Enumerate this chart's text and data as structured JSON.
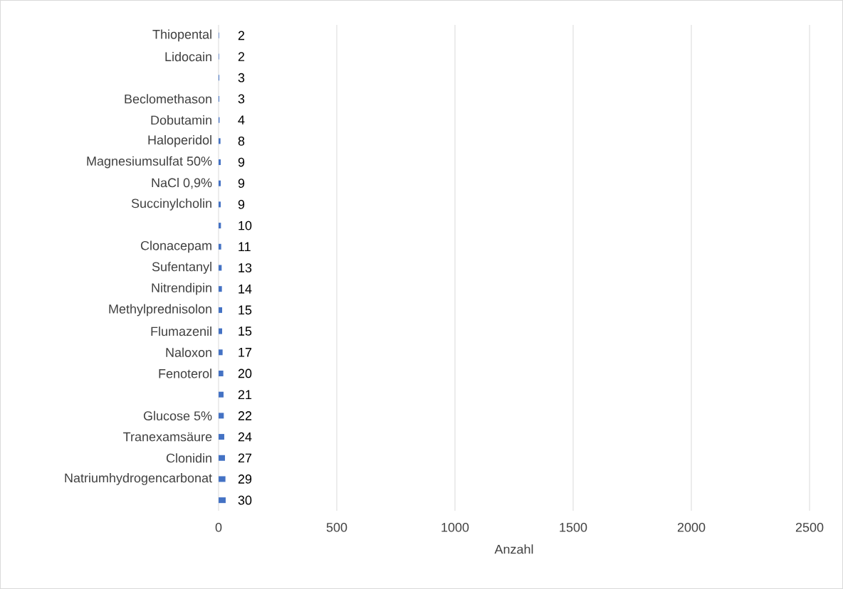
{
  "chart_data": {
    "type": "bar",
    "orientation": "horizontal",
    "xlabel": "Anzahl",
    "categories": [
      "Thiopental",
      "Lidocain",
      null,
      "Beclomethason",
      "Dobutamin",
      "Haloperidol",
      "Magnesiumsulfat 50%",
      "NaCl 0,9%",
      "Succinylcholin",
      null,
      "Clonacepam",
      "Sufentanyl",
      "Nitrendipin",
      "Methylprednisolon",
      "Flumazenil",
      "Naloxon",
      "Fenoterol",
      null,
      "Glucose 5%",
      "Tranexamsäure",
      "Clonidin",
      "Natriumhydrogencarbonat",
      null
    ],
    "values": [
      2,
      2,
      3,
      3,
      4,
      8,
      9,
      9,
      9,
      10,
      11,
      13,
      14,
      15,
      15,
      17,
      20,
      21,
      22,
      24,
      27,
      29,
      30
    ],
    "color": "#4472c4",
    "xlim": [
      0,
      2500
    ],
    "xticks": [
      0,
      500,
      1000,
      1500,
      2000,
      2500
    ],
    "grid": "x",
    "data_labels": true
  }
}
